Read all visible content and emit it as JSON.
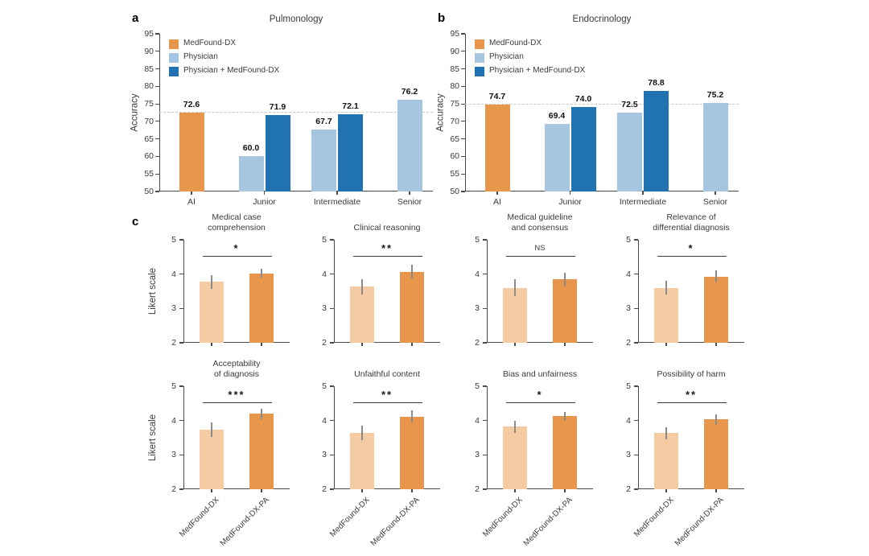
{
  "figure": {
    "panel_a_label": "a",
    "panel_b_label": "b",
    "panel_c_label": "c"
  },
  "colors": {
    "medfound_dx": "#E9964D",
    "physician": "#A6C5E1",
    "physician_medfound": "#2172B0",
    "medfound_dx_light": "#F5CBA4",
    "medfound_dx_pa": "#E9964D",
    "dashed_line": "#C6C6C6",
    "axis": "#4A4A4A",
    "error_bar": "#8A8A8A",
    "sig_line": "#3A3A3A",
    "text": "#3A3A3A"
  },
  "chart_data": [
    {
      "panel": "a",
      "type": "bar",
      "title": "Pulmonology",
      "ylabel": "Accuracy",
      "ylim": [
        50,
        95
      ],
      "yticks": [
        50,
        55,
        60,
        65,
        70,
        75,
        80,
        85,
        90,
        95
      ],
      "categories": [
        "AI",
        "Junior",
        "Intermediate",
        "Senior"
      ],
      "legend": [
        {
          "label": "MedFound-DX",
          "color": "medfound_dx"
        },
        {
          "label": "Physician",
          "color": "physician"
        },
        {
          "label": "Physician + MedFound-DX",
          "color": "physician_medfound"
        }
      ],
      "bars": [
        {
          "category": "AI",
          "series": "MedFound-DX",
          "value": 72.6,
          "label": "72.6",
          "color": "medfound_dx"
        },
        {
          "category": "Junior",
          "series": "Physician",
          "value": 60.0,
          "label": "60.0",
          "color": "physician"
        },
        {
          "category": "Junior",
          "series": "Physician + MedFound-DX",
          "value": 71.9,
          "label": "71.9",
          "color": "physician_medfound"
        },
        {
          "category": "Intermediate",
          "series": "Physician",
          "value": 67.7,
          "label": "67.7",
          "color": "physician"
        },
        {
          "category": "Intermediate",
          "series": "Physician + MedFound-DX",
          "value": 72.1,
          "label": "72.1",
          "color": "physician_medfound"
        },
        {
          "category": "Senior",
          "series": "Physician",
          "value": 76.2,
          "label": "76.2",
          "color": "physician"
        }
      ],
      "dashed_line": 72.6
    },
    {
      "panel": "b",
      "type": "bar",
      "title": "Endocrinology",
      "ylabel": "Accuracy",
      "ylim": [
        50,
        95
      ],
      "yticks": [
        50,
        55,
        60,
        65,
        70,
        75,
        80,
        85,
        90,
        95
      ],
      "categories": [
        "AI",
        "Junior",
        "Intermediate",
        "Senior"
      ],
      "legend": [
        {
          "label": "MedFound-DX",
          "color": "medfound_dx"
        },
        {
          "label": "Physician",
          "color": "physician"
        },
        {
          "label": "Physician + MedFound-DX",
          "color": "physician_medfound"
        }
      ],
      "bars": [
        {
          "category": "AI",
          "series": "MedFound-DX",
          "value": 74.7,
          "label": "74.7",
          "color": "medfound_dx"
        },
        {
          "category": "Junior",
          "series": "Physician",
          "value": 69.4,
          "label": "69.4",
          "color": "physician"
        },
        {
          "category": "Junior",
          "series": "Physician + MedFound-DX",
          "value": 74.0,
          "label": "74.0",
          "color": "physician_medfound"
        },
        {
          "category": "Intermediate",
          "series": "Physician",
          "value": 72.5,
          "label": "72.5",
          "color": "physician"
        },
        {
          "category": "Intermediate",
          "series": "Physician + MedFound-DX",
          "value": 78.8,
          "label": "78.8",
          "color": "physician_medfound"
        },
        {
          "category": "Senior",
          "series": "Physician",
          "value": 75.2,
          "label": "75.2",
          "color": "physician"
        }
      ],
      "dashed_line": 74.7
    },
    {
      "panel": "c",
      "type": "bar",
      "title_lines": [
        "Medical case",
        "comprehension"
      ],
      "significance": "*",
      "ylabel": "Likert scale",
      "ylim": [
        2,
        5
      ],
      "yticks": [
        2,
        3,
        4,
        5
      ],
      "categories": [
        "MedFound-DX",
        "MedFound-DX-PA"
      ],
      "bar_colors": [
        "medfound_dx_light",
        "medfound_dx_pa"
      ],
      "values": [
        3.78,
        4.02
      ],
      "errors": [
        0.2,
        0.13
      ],
      "show_xlabels": false
    },
    {
      "panel": "c",
      "type": "bar",
      "title_lines": [
        "Clinical reasoning"
      ],
      "significance": "**",
      "ylim": [
        2,
        5
      ],
      "yticks": [
        2,
        3,
        4,
        5
      ],
      "categories": [
        "MedFound-DX",
        "MedFound-DX-PA"
      ],
      "bar_colors": [
        "medfound_dx_light",
        "medfound_dx_pa"
      ],
      "values": [
        3.63,
        4.07
      ],
      "errors": [
        0.23,
        0.2
      ],
      "show_xlabels": false
    },
    {
      "panel": "c",
      "type": "bar",
      "title_lines": [
        "Medical guideline",
        "and consensus"
      ],
      "significance": "NS",
      "ylim": [
        2,
        5
      ],
      "yticks": [
        2,
        3,
        4,
        5
      ],
      "categories": [
        "MedFound-DX",
        "MedFound-DX-PA"
      ],
      "bar_colors": [
        "medfound_dx_light",
        "medfound_dx_pa"
      ],
      "values": [
        3.6,
        3.84
      ],
      "errors": [
        0.25,
        0.2
      ],
      "show_xlabels": false
    },
    {
      "panel": "c",
      "type": "bar",
      "title_lines": [
        "Relevance of",
        "differential diagnosis"
      ],
      "significance": "*",
      "ylim": [
        2,
        5
      ],
      "yticks": [
        2,
        3,
        4,
        5
      ],
      "categories": [
        "MedFound-DX",
        "MedFound-DX-PA"
      ],
      "bar_colors": [
        "medfound_dx_light",
        "medfound_dx_pa"
      ],
      "values": [
        3.6,
        3.93
      ],
      "errors": [
        0.2,
        0.17
      ],
      "show_xlabels": false
    },
    {
      "panel": "c",
      "type": "bar",
      "title_lines": [
        "Acceptability",
        "of diagnosis"
      ],
      "significance": "***",
      "ylabel": "Likert scale",
      "ylim": [
        2,
        5
      ],
      "yticks": [
        2,
        3,
        4,
        5
      ],
      "categories": [
        "MedFound-DX",
        "MedFound-DX-PA"
      ],
      "bar_colors": [
        "medfound_dx_light",
        "medfound_dx_pa"
      ],
      "values": [
        3.73,
        4.2
      ],
      "errors": [
        0.21,
        0.15
      ],
      "show_xlabels": true
    },
    {
      "panel": "c",
      "type": "bar",
      "title_lines": [
        "Unfaithful content"
      ],
      "significance": "**",
      "ylim": [
        2,
        5
      ],
      "yticks": [
        2,
        3,
        4,
        5
      ],
      "categories": [
        "MedFound-DX",
        "MedFound-DX-PA"
      ],
      "bar_colors": [
        "medfound_dx_light",
        "medfound_dx_pa"
      ],
      "values": [
        3.65,
        4.12
      ],
      "errors": [
        0.21,
        0.18
      ],
      "show_xlabels": true
    },
    {
      "panel": "c",
      "type": "bar",
      "title_lines": [
        "Bias and unfairness"
      ],
      "significance": "*",
      "ylim": [
        2,
        5
      ],
      "yticks": [
        2,
        3,
        4,
        5
      ],
      "categories": [
        "MedFound-DX",
        "MedFound-DX-PA"
      ],
      "bar_colors": [
        "medfound_dx_light",
        "medfound_dx_pa"
      ],
      "values": [
        3.82,
        4.13
      ],
      "errors": [
        0.18,
        0.13
      ],
      "show_xlabels": true
    },
    {
      "panel": "c",
      "type": "bar",
      "title_lines": [
        "Possibility of harm"
      ],
      "significance": "**",
      "ylim": [
        2,
        5
      ],
      "yticks": [
        2,
        3,
        4,
        5
      ],
      "categories": [
        "MedFound-DX",
        "MedFound-DX-PA"
      ],
      "bar_colors": [
        "medfound_dx_light",
        "medfound_dx_pa"
      ],
      "values": [
        3.63,
        4.03
      ],
      "errors": [
        0.18,
        0.15
      ],
      "show_xlabels": true
    }
  ]
}
